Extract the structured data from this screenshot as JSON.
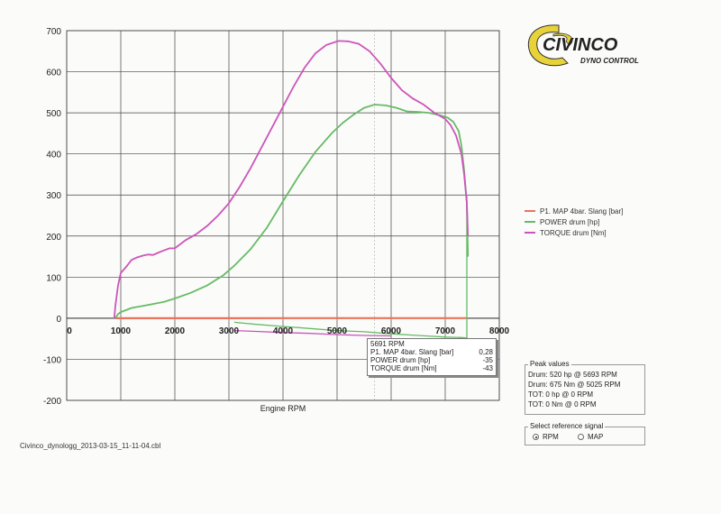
{
  "brand": {
    "logo_text": "CIVINCO",
    "logo_subtext": "DYNO CONTROL"
  },
  "chart_data": {
    "type": "line",
    "title": "",
    "xlabel": "Engine RPM",
    "ylabel": "",
    "xlim": [
      0,
      8000
    ],
    "ylim": [
      -200,
      700
    ],
    "x_ticks": [
      0,
      1000,
      2000,
      3000,
      4000,
      5000,
      6000,
      7000,
      8000
    ],
    "y_ticks": [
      -200,
      -100,
      0,
      100,
      200,
      300,
      400,
      500,
      600,
      700
    ],
    "grid": true,
    "legend_position": "right",
    "series": [
      {
        "name": "P1. MAP 4bar. Slang  [bar]",
        "color": "#e8735c",
        "x": [
          900,
          2000,
          3000,
          4000,
          5000,
          6000,
          7000,
          7400
        ],
        "y": [
          0,
          0,
          0,
          0.1,
          0.2,
          0.3,
          0.3,
          0.3
        ]
      },
      {
        "name": "POWER drum [hp]",
        "color": "#66bb66",
        "x": [
          900,
          950,
          1000,
          1200,
          1500,
          1800,
          2000,
          2300,
          2600,
          2900,
          3100,
          3400,
          3700,
          4000,
          4300,
          4600,
          4900,
          5100,
          5300,
          5500,
          5693,
          5900,
          6100,
          6300,
          6500,
          6700,
          6900,
          7050,
          7150,
          7250,
          7300,
          7350,
          7400,
          7420
        ],
        "y": [
          0,
          10,
          15,
          25,
          32,
          40,
          48,
          62,
          80,
          105,
          128,
          168,
          220,
          285,
          348,
          405,
          450,
          475,
          495,
          512,
          520,
          518,
          512,
          503,
          502,
          500,
          494,
          488,
          478,
          455,
          420,
          360,
          280,
          150
        ],
        "tail_x": [
          3100,
          3500,
          4000,
          4500,
          5000,
          5500,
          6000,
          6500,
          7000,
          7300,
          7400,
          7400
        ],
        "tail_y": [
          -10,
          -15,
          -20,
          -25,
          -30,
          -33,
          -38,
          -42,
          -46,
          -47,
          -48,
          300
        ]
      },
      {
        "name": "TORQUE drum [Nm]",
        "color": "#cc55bb",
        "x": [
          880,
          900,
          950,
          1000,
          1100,
          1200,
          1300,
          1400,
          1500,
          1600,
          1700,
          1800,
          1900,
          2000,
          2200,
          2400,
          2600,
          2800,
          3000,
          3200,
          3400,
          3600,
          3800,
          4000,
          4200,
          4400,
          4600,
          4800,
          5025,
          5200,
          5400,
          5600,
          5800,
          6000,
          6200,
          6400,
          6600,
          6800,
          7000,
          7100,
          7200,
          7300,
          7350,
          7400,
          7420
        ],
        "y": [
          0,
          30,
          80,
          110,
          125,
          142,
          148,
          152,
          155,
          154,
          160,
          165,
          170,
          170,
          190,
          205,
          225,
          250,
          280,
          320,
          365,
          415,
          465,
          515,
          565,
          610,
          645,
          665,
          675,
          674,
          668,
          650,
          620,
          585,
          555,
          535,
          520,
          500,
          485,
          470,
          445,
          400,
          350,
          280,
          200
        ],
        "tail_x": [
          3100,
          3500,
          4000,
          4500,
          5000,
          5500,
          6000
        ],
        "tail_y": [
          -30,
          -32,
          -35,
          -37,
          -40,
          -42,
          -43
        ]
      }
    ],
    "cursor_rpm": 5691
  },
  "readout": {
    "rpm_label": "5691 RPM",
    "rows": [
      {
        "label": "P1. MAP 4bar. Slang  [bar]",
        "value": "0,28"
      },
      {
        "label": "POWER drum [hp]",
        "value": "-35"
      },
      {
        "label": "TORQUE drum [Nm]",
        "value": "-43"
      }
    ]
  },
  "peak_values": {
    "title": "Peak values",
    "lines": [
      "Drum: 520 hp @ 5693 RPM",
      "Drum: 675 Nm @ 5025 RPM",
      "TOT: 0 hp @ 0 RPM",
      "TOT: 0 Nm @ 0 RPM"
    ]
  },
  "reference_signal": {
    "title": "Select reference signal",
    "options": [
      "RPM",
      "MAP"
    ],
    "selected": "RPM"
  },
  "footer": {
    "filename": "Civinco_dynologg_2013-03-15_11-11-04.cbl"
  }
}
